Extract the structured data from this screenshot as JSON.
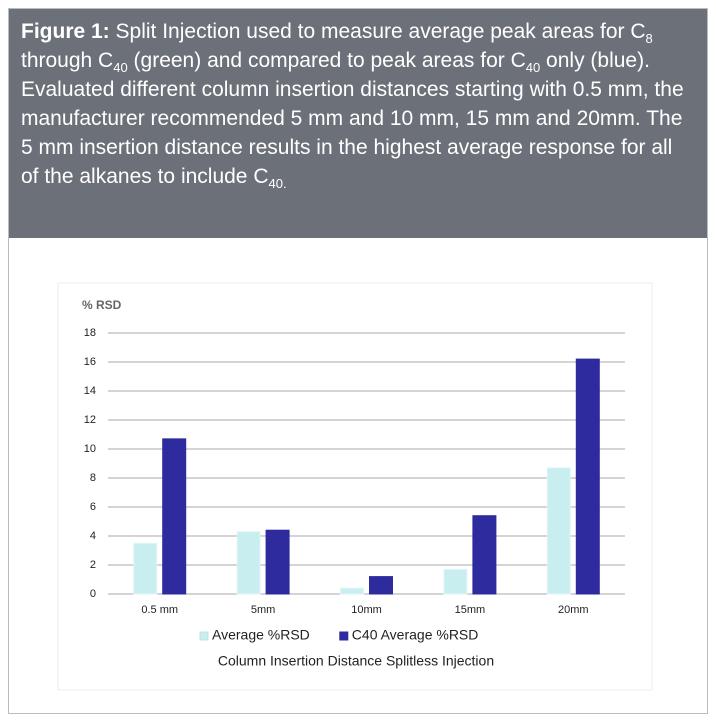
{
  "caption": {
    "label": "Figure 1:",
    "parts": [
      {
        "text": " Split Injection used to measure average peak areas for C"
      },
      {
        "sub": "8"
      },
      {
        "text": " through C"
      },
      {
        "sub": "40"
      },
      {
        "text": " (green) and compared to peak areas for C"
      },
      {
        "sub": "40"
      },
      {
        "text": " only (blue). Evaluated different column insertion distances starting with 0.5 mm, the manufacturer recommended 5 mm and 10 mm, 15 mm and 20mm. The 5 mm insertion distance results in the highest average response for all of the alkanes to include C"
      },
      {
        "sub": "40."
      }
    ]
  },
  "chart_data": {
    "type": "bar",
    "ylabel": "% RSD",
    "xlabel": "Column Insertion Distance Splitless Injection",
    "categories": [
      "0.5 mm",
      "5mm",
      "10mm",
      "15mm",
      "20mm"
    ],
    "series": [
      {
        "name": "Average %RSD",
        "color": "#c8eef0",
        "values": [
          3.5,
          4.3,
          0.4,
          1.7,
          8.7
        ]
      },
      {
        "name": "C40 Average %RSD",
        "color": "#2d2b9e",
        "values": [
          10.7,
          4.4,
          1.2,
          5.4,
          16.2
        ]
      }
    ],
    "ylim": [
      0,
      18
    ],
    "yticks": [
      0,
      2,
      4,
      6,
      8,
      10,
      12,
      14,
      16,
      18
    ],
    "grid": true,
    "legend": "bottom"
  }
}
